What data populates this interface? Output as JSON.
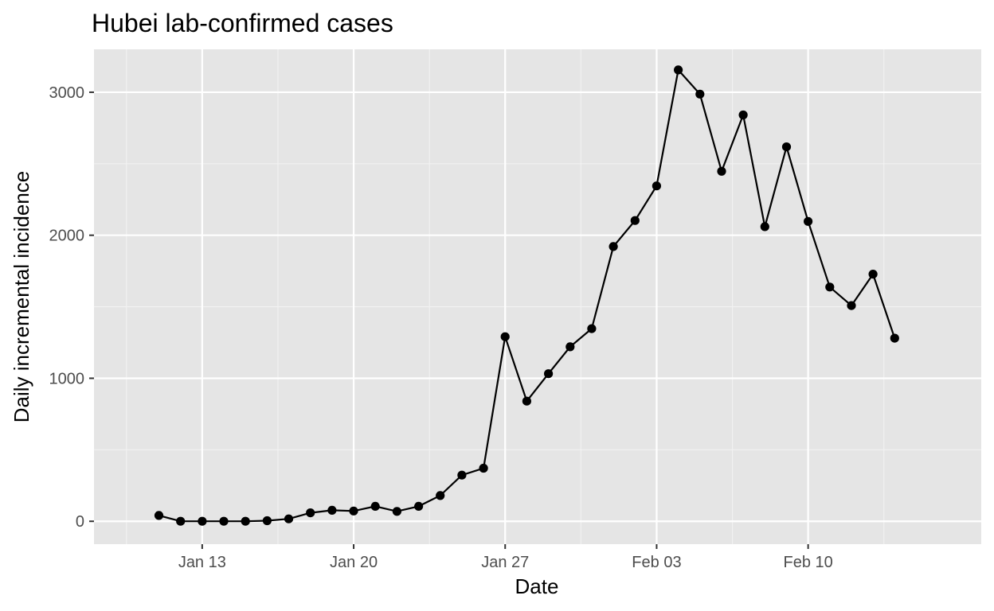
{
  "chart_data": {
    "type": "line",
    "title": "Hubei lab-confirmed cases",
    "xlabel": "Date",
    "ylabel": "Daily incremental incidence",
    "xlim": [
      "2020-01-08",
      "2020-02-18"
    ],
    "ylim": [
      -160,
      3300
    ],
    "x_ticks": [
      {
        "date": "2020-01-13",
        "label": "Jan 13"
      },
      {
        "date": "2020-01-20",
        "label": "Jan 20"
      },
      {
        "date": "2020-01-27",
        "label": "Jan 27"
      },
      {
        "date": "2020-02-03",
        "label": "Feb 03"
      },
      {
        "date": "2020-02-10",
        "label": "Feb 10"
      }
    ],
    "y_ticks": [
      0,
      1000,
      2000,
      3000
    ],
    "grid": true,
    "legend": "none",
    "colors": {
      "background": "#e5e5e5",
      "series": "#000000",
      "grid": "#ffffff"
    },
    "series": [
      {
        "x": [
          "2020-01-11",
          "2020-01-12",
          "2020-01-13",
          "2020-01-14",
          "2020-01-15",
          "2020-01-16",
          "2020-01-17",
          "2020-01-18",
          "2020-01-19",
          "2020-01-20",
          "2020-01-21",
          "2020-01-22",
          "2020-01-23",
          "2020-01-24",
          "2020-01-25",
          "2020-01-26",
          "2020-01-27",
          "2020-01-28",
          "2020-01-29",
          "2020-01-30",
          "2020-01-31",
          "2020-02-01",
          "2020-02-02",
          "2020-02-03",
          "2020-02-04",
          "2020-02-05",
          "2020-02-06",
          "2020-02-07",
          "2020-02-08",
          "2020-02-09",
          "2020-02-10",
          "2020-02-11",
          "2020-02-12",
          "2020-02-13",
          "2020-02-14"
        ],
        "values": [
          41,
          0,
          0,
          0,
          0,
          4,
          17,
          59,
          77,
          72,
          105,
          69,
          105,
          180,
          323,
          371,
          1291,
          840,
          1032,
          1220,
          1347,
          1921,
          2103,
          2345,
          3156,
          2987,
          2447,
          2841,
          2060,
          2618,
          2097,
          1638,
          1508,
          1728,
          1280
        ]
      }
    ]
  }
}
